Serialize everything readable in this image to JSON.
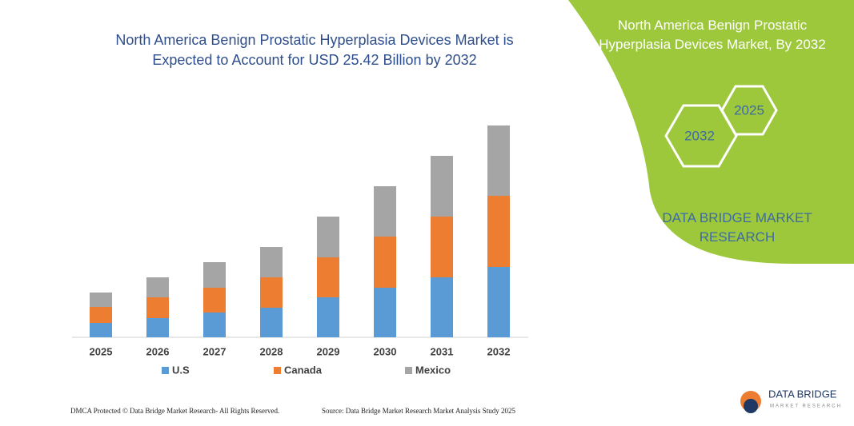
{
  "chart_data": {
    "type": "stacked_bar",
    "title": "North America Benign Prostatic Hyperplasia Devices Market is Expected to Account for USD 25.42 Billion by 2032",
    "categories": [
      "2025",
      "2026",
      "2027",
      "2028",
      "2029",
      "2030",
      "2031",
      "2032"
    ],
    "series": [
      {
        "name": "U.S",
        "color": "#5b9bd5",
        "values": [
          18,
          24,
          31,
          37,
          50,
          62,
          75,
          88
        ]
      },
      {
        "name": "Canada",
        "color": "#ed7d31",
        "values": [
          20,
          26,
          31,
          38,
          50,
          64,
          76,
          89
        ]
      },
      {
        "name": "Mexico",
        "color": "#a5a5a5",
        "values": [
          18,
          25,
          32,
          38,
          51,
          63,
          76,
          88
        ]
      }
    ]
  },
  "panel": {
    "title": "North America Benign Prostatic Hyperplasia Devices Market, By 2032",
    "hex_labels": [
      "2025",
      "2032"
    ],
    "brand": "DATA BRIDGE MARKET RESEARCH"
  },
  "logo": {
    "name": "DATA BRIDGE",
    "tagline": "MARKET RESEARCH"
  },
  "footer": {
    "left": "DMCA Protected © Data Bridge Market Research- All Rights Reserved.",
    "right": "Source: Data Bridge Market Research Market Analysis Study 2025"
  }
}
